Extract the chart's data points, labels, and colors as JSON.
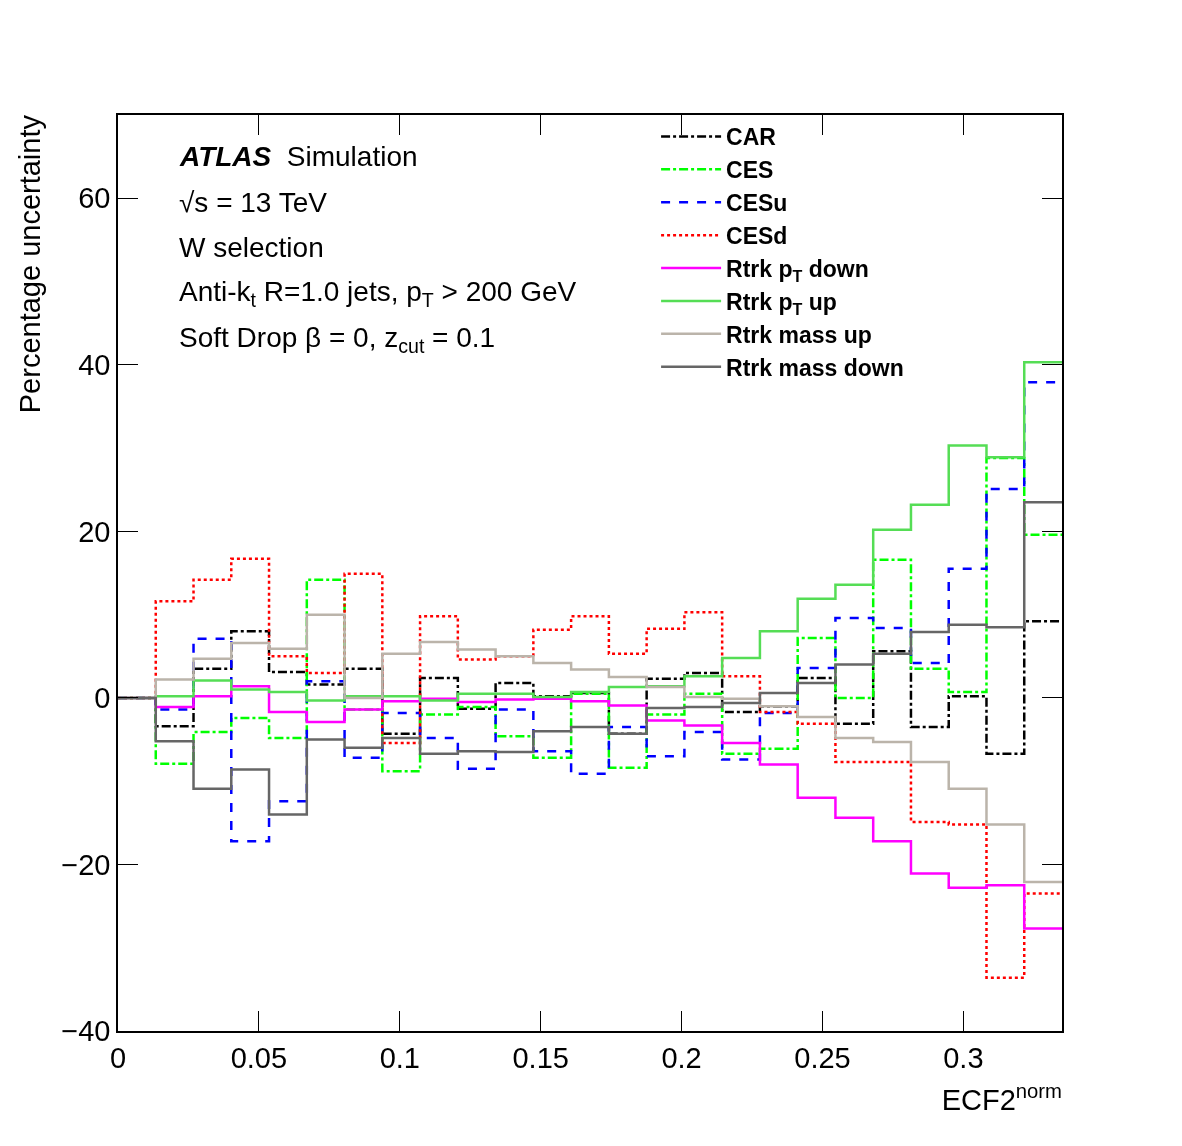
{
  "chart_data": {
    "type": "step",
    "xlabel": "ECF2$^{norm}$",
    "ylabel": "Percentage uncertainty",
    "annotations": [
      "ATLAS Simulation",
      "√s = 13 TeV",
      "W selection",
      "Anti-k$_{t}$ R=1.0 jets, p$_{T}$ > 200 GeV",
      "Soft Drop β = 0, z$_{cut}$ = 0.1"
    ],
    "x": [
      0,
      0.0134,
      0.0268,
      0.0402,
      0.0536,
      0.067,
      0.0804,
      0.0938,
      0.1072,
      0.1206,
      0.134,
      0.1474,
      0.1608,
      0.1742,
      0.1876,
      0.201,
      0.2144,
      0.2278,
      0.2412,
      0.2546,
      0.268,
      0.2814,
      0.2948,
      0.3082,
      0.3216,
      0.335
    ],
    "xlim": [
      0,
      0.335
    ],
    "xticks": [
      0,
      0.05,
      0.1,
      0.15,
      0.2,
      0.25,
      0.3
    ],
    "ylim": [
      -40,
      70
    ],
    "yticks": [
      {
        "value": -40,
        "label": "−40"
      },
      {
        "value": -20,
        "label": "−20"
      },
      0,
      20,
      40,
      60
    ],
    "grid": false,
    "legend": "top right",
    "tick_labels": [
      "x",
      "y"
    ],
    "series": [
      {
        "name": "CAR",
        "color": "#000000",
        "line_style": "dashdot",
        "values": [
          0,
          -3.4,
          3.5,
          8.0,
          3.1,
          1.6,
          3.5,
          -4.3,
          2.4,
          -1.3,
          1.8,
          0.2,
          0.6,
          -4.3,
          2.3,
          3.0,
          -1.7,
          -1.0,
          2.4,
          -3.1,
          5.6,
          -3.5,
          0.2,
          -6.7,
          9.2,
          9.2
        ]
      },
      {
        "name": "CES",
        "color": "#00ff00",
        "line_style": "dashdot",
        "values": [
          0,
          -7.9,
          -4.1,
          -2.4,
          -4.8,
          14.2,
          -1.4,
          -8.8,
          -2.0,
          -1.1,
          -4.6,
          -7.2,
          0.5,
          -8.4,
          -2.0,
          0.5,
          -6.7,
          -6.1,
          7.2,
          0.0,
          16.6,
          3.5,
          0.7,
          28.8,
          19.6,
          19.6
        ]
      },
      {
        "name": "CESu",
        "color": "#0000ff",
        "line_style": "dashed",
        "values": [
          0,
          -1.4,
          7.1,
          -17.2,
          -12.4,
          2.0,
          -7.2,
          -1.8,
          -4.8,
          -8.5,
          -1.4,
          -6.4,
          -9.1,
          -3.5,
          -7.0,
          -4.1,
          -7.4,
          -1.8,
          3.6,
          9.6,
          8.4,
          4.2,
          15.5,
          25.1,
          37.9,
          37.9
        ]
      },
      {
        "name": "CESd",
        "color": "#ff0000",
        "line_style": "dotted",
        "values": [
          0,
          11.6,
          14.2,
          16.7,
          5.0,
          3.0,
          14.9,
          -5.4,
          9.8,
          4.6,
          5.0,
          8.2,
          9.8,
          5.3,
          8.3,
          10.3,
          2.6,
          -1.7,
          -3.1,
          -7.7,
          -7.7,
          -14.9,
          -15.2,
          -33.6,
          -23.5,
          -23.5
        ]
      },
      {
        "name": "Rtrk p$_{T}$ down",
        "color": "#ff00ff",
        "line_style": "solid",
        "values": [
          0,
          -1.1,
          0.2,
          1.4,
          -1.7,
          -2.9,
          -1.4,
          -0.4,
          -0.1,
          -0.5,
          -0.2,
          -0.1,
          -0.4,
          -0.9,
          -2.7,
          -3.3,
          -5.4,
          -8.0,
          -12.0,
          -14.4,
          -17.2,
          -21.1,
          -22.8,
          -22.5,
          -27.7,
          -27.7
        ]
      },
      {
        "name": "Rtrk p$_{T}$ up",
        "color": "#55dd55",
        "line_style": "solid",
        "values": [
          0,
          0.2,
          2.1,
          1.0,
          0.7,
          -0.3,
          0.2,
          0.2,
          -0.3,
          0.5,
          0.5,
          0.1,
          0.7,
          1.3,
          1.4,
          2.6,
          4.8,
          8.0,
          11.9,
          13.6,
          20.2,
          23.2,
          30.3,
          28.9,
          40.3,
          40.3
        ]
      },
      {
        "name": "Rtrk mass up",
        "color": "#bbb4aa",
        "line_style": "solid",
        "values": [
          0,
          2.2,
          4.7,
          6.6,
          5.9,
          10.0,
          0.0,
          5.3,
          6.7,
          5.8,
          5.0,
          4.2,
          3.4,
          2.5,
          1.3,
          0.1,
          -0.1,
          -1.0,
          -2.3,
          -4.8,
          -5.3,
          -7.7,
          -10.9,
          -15.2,
          -22.1,
          -22.1
        ]
      },
      {
        "name": "Rtrk mass down",
        "color": "#666666",
        "line_style": "solid",
        "values": [
          0,
          -5.2,
          -10.9,
          -8.6,
          -14.0,
          -5.0,
          -6.0,
          -4.8,
          -6.7,
          -6.4,
          -6.5,
          -4.0,
          -3.5,
          -4.3,
          -1.2,
          -1.1,
          -0.6,
          0.6,
          1.8,
          4.0,
          5.3,
          7.9,
          8.8,
          8.5,
          23.5,
          23.5
        ]
      }
    ]
  }
}
